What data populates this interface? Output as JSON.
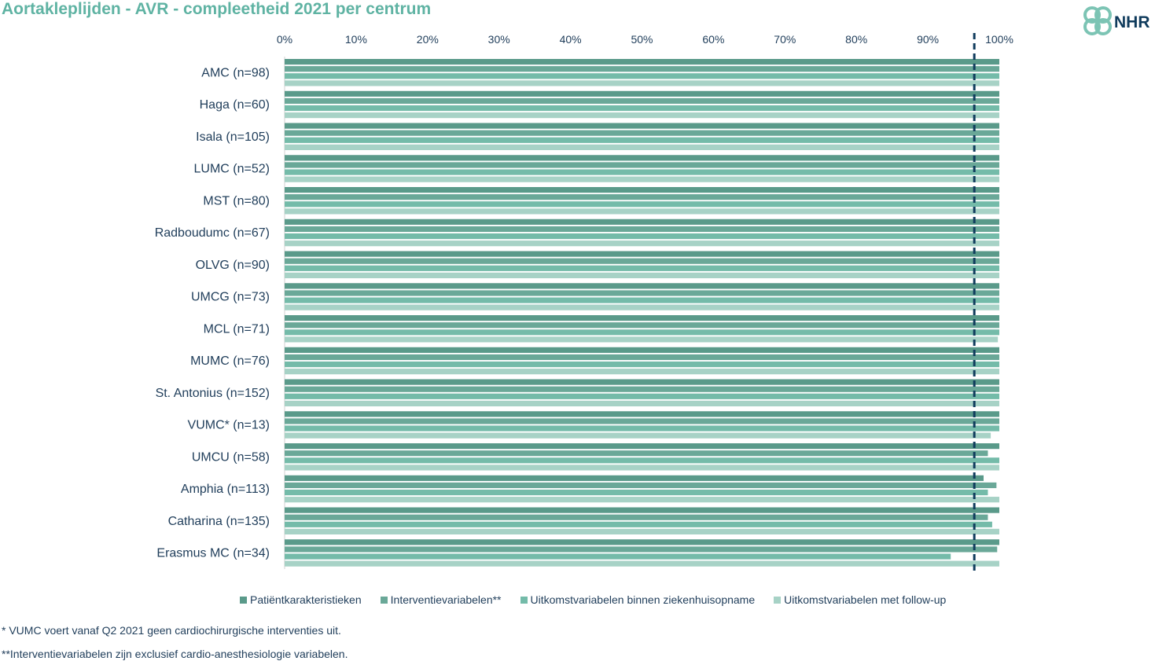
{
  "colors": {
    "title": "#5fb3a3",
    "series": [
      "#5a9a8a",
      "#6aa898",
      "#74bba9",
      "#a7d2c6"
    ],
    "target_line": "#0f3b5c",
    "text": "#1f3d5a"
  },
  "logo": {
    "text": "NHR",
    "icon": "nhr-knot-logo-icon"
  },
  "legend": {
    "placement": "bottom",
    "items": [
      "Patiëntkarakteristieken",
      "Interventievariabelen**",
      "Uitkomstvariabelen binnen ziekenhuisopname",
      "Uitkomstvariabelen met follow-up"
    ]
  },
  "footnotes": [
    "* VUMC voert vanaf Q2 2021 geen cardiochirurgische interventies uit.",
    "**Interventievariabelen zijn exclusief cardio-anesthesiologie variabelen."
  ],
  "chart_data": {
    "type": "bar",
    "orientation": "horizontal",
    "title": "Aortakleplijden - AVR - compleetheid 2021 per centrum",
    "xlim": [
      0,
      100
    ],
    "xticks": [
      "0%",
      "10%",
      "20%",
      "30%",
      "40%",
      "50%",
      "60%",
      "70%",
      "80%",
      "90%",
      "100%"
    ],
    "grid": false,
    "target_line": 96.5,
    "categories": [
      "AMC (n=98)",
      "Haga (n=60)",
      "Isala (n=105)",
      "LUMC (n=52)",
      "MST (n=80)",
      "Radboudumc (n=67)",
      "OLVG (n=90)",
      "UMCG (n=73)",
      "MCL (n=71)",
      "MUMC (n=76)",
      "St. Antonius (n=152)",
      "VUMC* (n=13)",
      "UMCU (n=58)",
      "Amphia (n=113)",
      "Catharina (n=135)",
      "Erasmus MC (n=34)"
    ],
    "series": [
      {
        "name": "Patiëntkarakteristieken",
        "values": [
          100,
          100,
          100,
          100,
          100,
          100,
          100,
          100,
          100,
          100,
          100,
          100,
          100,
          97.8,
          100,
          100
        ]
      },
      {
        "name": "Interventievariabelen**",
        "values": [
          100,
          100,
          100,
          100,
          100,
          100,
          100,
          100,
          100,
          100,
          100,
          100,
          98.4,
          99.6,
          98.4,
          99.7
        ]
      },
      {
        "name": "Uitkomstvariabelen binnen ziekenhuisopname",
        "values": [
          100,
          100,
          100,
          100,
          100,
          100,
          100,
          100,
          100,
          100,
          100,
          100,
          100,
          98.4,
          99.0,
          93.2
        ]
      },
      {
        "name": "Uitkomstvariabelen met follow-up",
        "values": [
          100,
          100,
          100,
          100,
          100,
          100,
          100,
          100,
          99.8,
          100,
          100,
          98.8,
          100,
          100,
          100,
          100
        ]
      }
    ]
  }
}
